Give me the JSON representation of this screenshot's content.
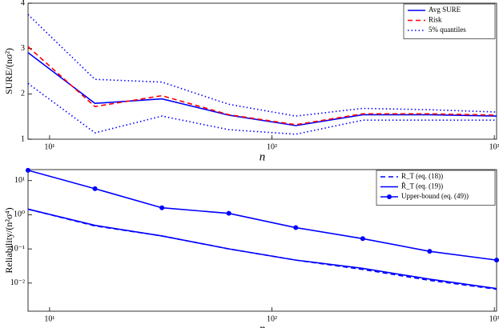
{
  "chart_data": [
    {
      "type": "line",
      "xlabel": "n",
      "ylabel": "SURE/(nσ²)",
      "x": [
        8,
        16,
        32,
        64,
        128,
        256,
        512,
        1024
      ],
      "xlim": [
        8,
        1024
      ],
      "xscale": "log",
      "xticks": [
        {
          "value": 10,
          "label": "10¹"
        },
        {
          "value": 100,
          "label": "10²"
        },
        {
          "value": 1000,
          "label": "10³"
        }
      ],
      "ylim": [
        1,
        4
      ],
      "yscale": "linear",
      "yticks": [
        1,
        2,
        3,
        4
      ],
      "legend": "upper right",
      "series": [
        {
          "name": "Avg SURE",
          "color": "#0000ff",
          "style": "solid",
          "values": [
            2.91,
            1.79,
            1.89,
            1.53,
            1.3,
            1.54,
            1.54,
            1.51
          ]
        },
        {
          "name": "Risk",
          "color": "#ff0000",
          "style": "dashed",
          "values": [
            3.04,
            1.72,
            1.96,
            1.54,
            1.32,
            1.56,
            1.56,
            1.53
          ]
        },
        {
          "name": "5% quantiles",
          "color": "#0000ff",
          "style": "dotted",
          "values": [
            3.75,
            2.32,
            2.26,
            1.77,
            1.51,
            1.68,
            1.65,
            1.6
          ],
          "lower_values": [
            2.23,
            1.14,
            1.51,
            1.21,
            1.11,
            1.42,
            1.42,
            1.42
          ]
        }
      ]
    },
    {
      "type": "line",
      "xlabel": "n",
      "ylabel": "Reliability/(n²σ⁴)",
      "x": [
        8,
        16,
        32,
        64,
        128,
        256,
        512,
        1024
      ],
      "xlim": [
        8,
        1024
      ],
      "xscale": "log",
      "xticks": [
        {
          "value": 10,
          "label": "10¹"
        },
        {
          "value": 100,
          "label": "10²"
        },
        {
          "value": 1000,
          "label": "10³"
        }
      ],
      "ylim": [
        0.0015,
        21
      ],
      "yscale": "log",
      "yticks": [
        {
          "value": 0.01,
          "label": "10⁻²"
        },
        {
          "value": 0.1,
          "label": "10⁻¹"
        },
        {
          "value": 1,
          "label": "10⁰"
        },
        {
          "value": 10,
          "label": "10¹"
        }
      ],
      "legend": "upper right",
      "series": [
        {
          "name": "R_T (eq. (18))",
          "color": "#0000ff",
          "style": "dashed",
          "values": [
            1.46,
            0.47,
            0.24,
            0.1,
            0.047,
            0.025,
            0.012,
            0.0066
          ]
        },
        {
          "name": "R̂_T (eq. (19))",
          "color": "#0000ff",
          "style": "solid",
          "values": [
            1.46,
            0.49,
            0.24,
            0.1,
            0.047,
            0.027,
            0.013,
            0.0069
          ]
        },
        {
          "name": "Upper-bound (eq. (49))",
          "color": "#0000ff",
          "style": "solid",
          "marker": "circle",
          "values": [
            20,
            5.8,
            1.6,
            1.1,
            0.42,
            0.2,
            0.085,
            0.047
          ]
        }
      ]
    }
  ]
}
